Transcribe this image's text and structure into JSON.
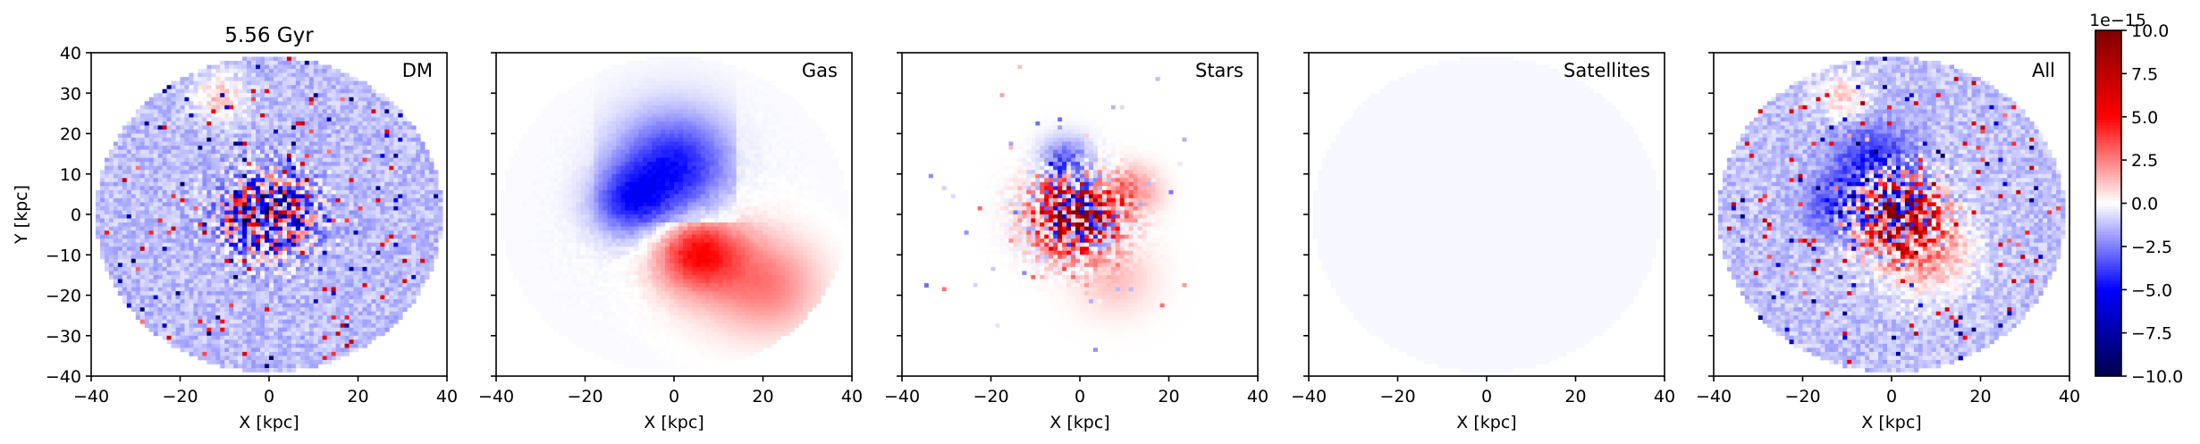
{
  "chart_data": {
    "type": "heatmap",
    "title": "5.56 Gyr",
    "colormap": "seismic",
    "xlim": [
      -40,
      40
    ],
    "ylim": [
      -40,
      40
    ],
    "xlabel": "X [kpc]",
    "ylabel": "Y [kpc]",
    "ticks": [
      -40,
      -20,
      0,
      20,
      40
    ],
    "tick_labels": [
      "−40",
      "−20",
      "0",
      "20",
      "40"
    ],
    "y_ticks": [
      -40,
      -30,
      -20,
      -10,
      0,
      10,
      20,
      30,
      40
    ],
    "y_tick_labels": [
      "−40",
      "−30",
      "−20",
      "−10",
      "0",
      "10",
      "20",
      "30",
      "40"
    ],
    "colorbar": {
      "range": [
        -10.0,
        10.0
      ],
      "ticks": [
        -10.0,
        -7.5,
        -5.0,
        -2.5,
        0.0,
        2.5,
        5.0,
        7.5,
        10.0
      ],
      "tick_labels": [
        "−10.0",
        "−7.5",
        "−5.0",
        "−2.5",
        "0.0",
        "2.5",
        "5.0",
        "7.5",
        "10.0"
      ],
      "offset_label": "1e−15"
    },
    "panels": [
      {
        "name": "DM"
      },
      {
        "name": "Gas"
      },
      {
        "name": "Stars"
      },
      {
        "name": "Satellites"
      },
      {
        "name": "All"
      }
    ],
    "disk_radius_kpc": 39
  }
}
